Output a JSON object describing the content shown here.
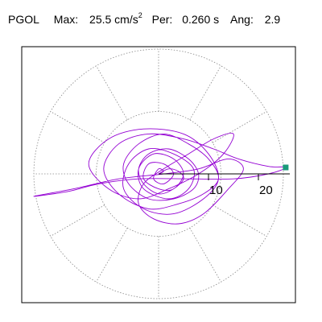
{
  "header": {
    "station": "PGOL",
    "max_label": "Max:",
    "max_value": "25.5",
    "max_unit_base": "cm/s",
    "max_unit_exp": "2",
    "per_label": "Per:",
    "per_value": "0.260 s",
    "ang_label": "Ang:",
    "ang_value": "2.9"
  },
  "colors": {
    "trace": "#9400d3",
    "marker": "#1a9a7a",
    "grid": "#888888",
    "axis": "#000000",
    "frame": "#000000"
  },
  "chart_data": {
    "type": "polar-hodogram",
    "title": "",
    "rlim": [
      0,
      25.5
    ],
    "radial_ticks": [
      10,
      20
    ],
    "radial_tick_labels": [
      "10",
      "20"
    ],
    "grid_circles": [
      12.5,
      25
    ],
    "spokes_deg": [
      30,
      60,
      90,
      120,
      150,
      180,
      210,
      240,
      270,
      300,
      330
    ],
    "peak_marker": {
      "r": 25.5,
      "angle_deg": 2.9
    },
    "trace_points": [
      [
        0,
        0
      ],
      [
        2,
        1
      ],
      [
        4,
        0.5
      ],
      [
        5,
        -1
      ],
      [
        3,
        -3
      ],
      [
        0,
        -4
      ],
      [
        -3,
        -2
      ],
      [
        -4,
        1
      ],
      [
        -2,
        4
      ],
      [
        2,
        5
      ],
      [
        6,
        3
      ],
      [
        8,
        0
      ],
      [
        7,
        -3
      ],
      [
        3,
        -5
      ],
      [
        -2,
        -5
      ],
      [
        -6,
        -2
      ],
      [
        -7,
        2
      ],
      [
        -4,
        6
      ],
      [
        1,
        8
      ],
      [
        6,
        6
      ],
      [
        10,
        3
      ],
      [
        12,
        -1
      ],
      [
        9,
        -4
      ],
      [
        4,
        -6
      ],
      [
        -2,
        -7
      ],
      [
        -8,
        -4
      ],
      [
        -11,
        1
      ],
      [
        -8,
        6
      ],
      [
        -2,
        8
      ],
      [
        5,
        7
      ],
      [
        11,
        5
      ],
      [
        16,
        3
      ],
      [
        22,
        1.5
      ],
      [
        25.5,
        1.3
      ],
      [
        22,
        0
      ],
      [
        15,
        -1
      ],
      [
        6,
        -1
      ],
      [
        -4,
        -1
      ],
      [
        -12,
        -2
      ],
      [
        -18,
        -3.5
      ],
      [
        -25,
        -4.5
      ],
      [
        -17,
        -3
      ],
      [
        -8,
        -1
      ],
      [
        1,
        0
      ],
      [
        8,
        1
      ],
      [
        14,
        3
      ],
      [
        17,
        1
      ],
      [
        14,
        -3
      ],
      [
        9,
        -8
      ],
      [
        4,
        -10
      ],
      [
        -1,
        -9
      ],
      [
        -4,
        -6
      ],
      [
        -3,
        -2
      ],
      [
        1,
        1
      ],
      [
        6,
        4
      ],
      [
        11,
        7
      ],
      [
        15,
        8
      ],
      [
        13,
        4
      ],
      [
        8,
        0
      ],
      [
        2,
        -3
      ],
      [
        -4,
        -5
      ],
      [
        -10,
        -3
      ],
      [
        -14,
        2
      ],
      [
        -10,
        7
      ],
      [
        -3,
        9
      ],
      [
        5,
        8
      ],
      [
        10,
        4
      ],
      [
        12,
        -1
      ],
      [
        9,
        -5
      ],
      [
        3,
        -8
      ],
      [
        -3,
        -7
      ],
      [
        -7,
        -3
      ],
      [
        -6,
        2
      ],
      [
        -2,
        5
      ],
      [
        3,
        4
      ],
      [
        7,
        1
      ],
      [
        6,
        -3
      ],
      [
        2,
        -5
      ],
      [
        -3,
        -3
      ],
      [
        -4,
        1
      ],
      [
        -1,
        4
      ],
      [
        3,
        3
      ],
      [
        5,
        0
      ],
      [
        3,
        -3
      ],
      [
        0,
        -3
      ],
      [
        -3,
        -1
      ],
      [
        -2,
        2
      ],
      [
        1,
        2
      ],
      [
        3,
        0
      ],
      [
        1,
        -2
      ],
      [
        -1,
        -1
      ],
      [
        0,
        1
      ],
      [
        1,
        0.5
      ],
      [
        0,
        0
      ]
    ]
  }
}
